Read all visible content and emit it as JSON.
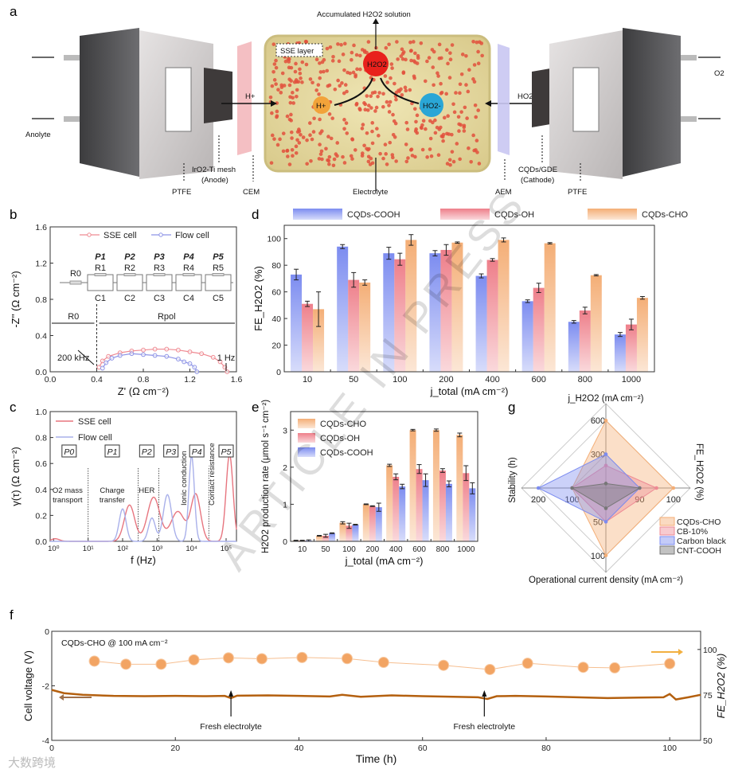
{
  "panel_letters": [
    "a",
    "b",
    "c",
    "d",
    "e",
    "f",
    "g"
  ],
  "watermark": "ARTICLE IN PRESS",
  "logo_text": "大数跨境",
  "schematic": {
    "labels": {
      "accumulated": "Accumulated H2O2 solution",
      "sse_layer": "SSE layer",
      "h2o2": "H2O2",
      "hplus_center": "H+",
      "ho2_center": "HO2-",
      "hplus_arrow": "H+",
      "ho2_arrow": "HO2-",
      "anolyte": "Anolyte",
      "o2": "O2",
      "ptfe_left": "PTFE",
      "iro2_mesh": "IrO2-Ti mesh",
      "anode": "(Anode)",
      "cem": "CEM",
      "electrolyte": "Electrolyte",
      "aem": "AEM",
      "cqds_gde": "CQDs/GDE",
      "cathode": "(Cathode)",
      "ptfe_right": "PTFE"
    },
    "colors": {
      "h2o2": "#e8211c",
      "hplus": "#f2a33a",
      "ho2": "#2aa6d6",
      "cem": "#f3b8bd",
      "aem": "#c9c6f2",
      "gel": "#e8dca0"
    }
  },
  "chart_data": [
    {
      "id": "b",
      "type": "scatter",
      "xlabel": "Z' (Ω cm⁻²)",
      "ylabel": "-Z'' (Ω cm⁻²)",
      "xlim": [
        0,
        1.6
      ],
      "ylim": [
        0,
        1.6
      ],
      "xticks": [
        "0.0",
        "0.4",
        "0.8",
        "1.2",
        "1.6"
      ],
      "xtick_values": [
        0,
        0.4,
        0.8,
        1.2,
        1.6
      ],
      "yticks": [
        "0.0",
        "0.4",
        "0.8",
        "1.2",
        "1.6"
      ],
      "ytick_values": [
        0,
        0.4,
        0.8,
        1.2,
        1.6
      ],
      "series": [
        {
          "name": "SSE cell",
          "color": "#ef8a92",
          "x": [
            0.42,
            0.45,
            0.5,
            0.6,
            0.7,
            0.8,
            0.9,
            1.0,
            1.1,
            1.2,
            1.3,
            1.4,
            1.46,
            1.5,
            1.52
          ],
          "y": [
            0.05,
            0.12,
            0.17,
            0.21,
            0.23,
            0.24,
            0.25,
            0.25,
            0.24,
            0.22,
            0.2,
            0.16,
            0.11,
            0.05,
            0.0
          ]
        },
        {
          "name": "Flow cell",
          "color": "#8d93e6",
          "x": [
            0.45,
            0.48,
            0.53,
            0.6,
            0.7,
            0.8,
            0.9,
            1.0,
            1.1,
            1.15,
            1.2,
            1.24,
            1.26
          ],
          "y": [
            0.04,
            0.1,
            0.15,
            0.18,
            0.2,
            0.19,
            0.18,
            0.17,
            0.14,
            0.11,
            0.09,
            0.05,
            0.0
          ]
        }
      ],
      "circuit": {
        "r0": "R0",
        "elements": [
          {
            "p": "P1",
            "r": "R1",
            "c": "C1"
          },
          {
            "p": "P2",
            "r": "R2",
            "c": "C2"
          },
          {
            "p": "P3",
            "r": "R3",
            "c": "C3"
          },
          {
            "p": "P4",
            "r": "R4",
            "c": "C4"
          },
          {
            "p": "P5",
            "r": "R5",
            "c": "C5"
          }
        ]
      },
      "annotations": {
        "r0": "R0",
        "rpol": "Rpol",
        "high_freq": "200 kHz",
        "low_freq": "1 Hz",
        "r0_boundary": 0.4
      }
    },
    {
      "id": "c",
      "type": "line",
      "xlabel": "f (Hz)",
      "ylabel": "γ(τ) (Ω cm⁻²)",
      "xscale": "log",
      "xlim_log10": [
        -0.1,
        5.3
      ],
      "ylim": [
        0,
        1.0
      ],
      "xticks": [
        "10⁰",
        "10¹",
        "10²",
        "10³",
        "10⁴",
        "10⁵"
      ],
      "xtick_log10": [
        0,
        1,
        2,
        3,
        4,
        5
      ],
      "yticks": [
        "0.0",
        "0.2",
        "0.4",
        "0.6",
        "0.8",
        "1.0"
      ],
      "ytick_values": [
        0,
        0.2,
        0.4,
        0.6,
        0.8,
        1.0
      ],
      "series": [
        {
          "name": "SSE cell",
          "color": "#e7757f",
          "peaks_log10f_height_width": [
            [
              0.05,
              0.02,
              0.12
            ],
            [
              2.2,
              0.28,
              0.15
            ],
            [
              2.9,
              0.34,
              0.18
            ],
            [
              3.6,
              0.23,
              0.2
            ],
            [
              4.12,
              0.36,
              0.14
            ],
            [
              5.1,
              0.67,
              0.1
            ]
          ]
        },
        {
          "name": "Flow cell",
          "color": "#a9b0ea",
          "peaks_log10f_height_width": [
            [
              2.0,
              0.25,
              0.1
            ],
            [
              2.85,
              0.18,
              0.1
            ],
            [
              3.3,
              0.36,
              0.12
            ],
            [
              4.0,
              0.66,
              0.08
            ]
          ]
        }
      ],
      "dividers_log10f": [
        1.0,
        2.45,
        3.05,
        4.5
      ],
      "processes": [
        {
          "p": "P0",
          "at": 0.45,
          "desc": [
            "O2 mass",
            "transport"
          ]
        },
        {
          "p": "P1",
          "at": 1.7,
          "desc": [
            "Charge",
            "transfer"
          ]
        },
        {
          "p": "P2",
          "at": 2.7,
          "desc": [
            "HER"
          ]
        },
        {
          "p": "P3",
          "at": 3.4,
          "desc": []
        },
        {
          "p": "P4",
          "at": 4.15,
          "desc": []
        },
        {
          "p": "P5",
          "at": 5.0,
          "desc": []
        }
      ],
      "vertical_labels": {
        "ionic": "Ionic conduction",
        "contact": "Contact resistance"
      }
    },
    {
      "id": "d",
      "type": "bar",
      "xlabel": "j_total (mA cm⁻²)",
      "ylabel": "FE_H2O2 (%)",
      "categories": [
        "10",
        "50",
        "100",
        "200",
        "400",
        "600",
        "800",
        "1000"
      ],
      "ylim": [
        0,
        110
      ],
      "yticks": [
        "0",
        "20",
        "40",
        "60",
        "80",
        "100"
      ],
      "ytick_values": [
        0,
        20,
        40,
        60,
        80,
        100
      ],
      "legend": "top",
      "series": [
        {
          "name": "CQDs-COOH",
          "color": "#7c8cf0",
          "values": [
            73,
            94,
            89,
            89,
            72,
            53,
            37.5,
            28
          ],
          "errors": [
            4,
            1.5,
            4.5,
            2,
            1.5,
            1,
            1,
            1.5
          ]
        },
        {
          "name": "CQDs-OH",
          "color": "#ee7f8a",
          "values": [
            51,
            69,
            84.5,
            91.5,
            84,
            63,
            46,
            35.5
          ],
          "errors": [
            2,
            5.5,
            4.5,
            4,
            1,
            3.5,
            2.5,
            4
          ]
        },
        {
          "name": "CQDs-CHO",
          "color": "#f4ae76",
          "values": [
            47,
            67,
            99,
            97,
            99,
            96.5,
            72.5,
            55.5
          ],
          "errors": [
            13,
            2,
            4,
            0.5,
            1.5,
            0.5,
            0.5,
            1
          ]
        }
      ]
    },
    {
      "id": "e",
      "type": "bar",
      "xlabel": "j_total (mA cm⁻²)",
      "ylabel": "H2O2 production rate (μmol s⁻¹ cm⁻²)",
      "categories": [
        "10",
        "50",
        "100",
        "200",
        "400",
        "600",
        "800",
        "1000"
      ],
      "ylim": [
        0,
        3.5
      ],
      "yticks": [
        "0",
        "1",
        "2",
        "3"
      ],
      "ytick_values": [
        0,
        1,
        2,
        3
      ],
      "legend": "top-left",
      "series": [
        {
          "name": "CQDs-CHO",
          "color": "#f4ae76",
          "values": [
            0.02,
            0.15,
            0.5,
            1.0,
            2.05,
            3.0,
            3.0,
            2.87
          ],
          "errors": [
            0.01,
            0.01,
            0.03,
            0.01,
            0.03,
            0.02,
            0.03,
            0.05
          ]
        },
        {
          "name": "CQDs-OH",
          "color": "#ee7f8a",
          "values": [
            0.02,
            0.15,
            0.42,
            0.95,
            1.74,
            1.95,
            1.91,
            1.84
          ],
          "errors": [
            0.01,
            0.04,
            0.07,
            0.01,
            0.08,
            0.12,
            0.05,
            0.2
          ]
        },
        {
          "name": "CQDs-COOH",
          "color": "#7c8cf0",
          "values": [
            0.02,
            0.22,
            0.45,
            0.92,
            1.48,
            1.65,
            1.55,
            1.43
          ],
          "errors": [
            0.02,
            0.01,
            0.01,
            0.11,
            0.06,
            0.17,
            0.08,
            0.15
          ]
        }
      ]
    },
    {
      "id": "g",
      "type": "radar",
      "axes": [
        {
          "name": "j_H2O2 (mA cm⁻²)",
          "dir": "top",
          "range": [
            0,
            750
          ],
          "ticks": [
            "300",
            "600"
          ],
          "tick_values": [
            300,
            600
          ]
        },
        {
          "name": "FE_H2O2 (%)",
          "dir": "right",
          "range": [
            80,
            105
          ],
          "ticks": [
            "90",
            "100"
          ],
          "tick_values": [
            90,
            100
          ]
        },
        {
          "name": "Operational current density (mA cm⁻²)",
          "dir": "bottom",
          "range": [
            0,
            125
          ],
          "ticks": [
            "50",
            "100"
          ],
          "tick_values": [
            50,
            100
          ]
        },
        {
          "name": "Stability (h)",
          "dir": "left",
          "range": [
            0,
            250
          ],
          "ticks": [
            "100",
            "200"
          ],
          "tick_values": [
            100,
            200
          ]
        }
      ],
      "legend": "bottom-right",
      "series": [
        {
          "name": "CQDs-CHO",
          "color": "#f4ae76",
          "values": [
            600,
            100,
            100,
            100
          ]
        },
        {
          "name": "CB-10%",
          "color": "#ee8a94",
          "values": [
            200,
            95,
            50,
            100
          ]
        },
        {
          "name": "Carbon black",
          "color": "#7c8cf0",
          "values": [
            300,
            90,
            50,
            200
          ]
        },
        {
          "name": "CNT-COOH",
          "color": "#777777",
          "values": [
            40,
            90,
            30,
            100
          ]
        }
      ]
    },
    {
      "id": "f",
      "type": "line",
      "title": "CQDs-CHO @ 100 mA cm⁻²",
      "xlabel": "Time (h)",
      "ylabel_left": "Cell voltage (V)",
      "ylabel_right": "FE_H2O2 (%)",
      "xlim": [
        0,
        105
      ],
      "ylim_left": [
        -4,
        0
      ],
      "ylim_right": [
        50,
        110
      ],
      "xticks": [
        "0",
        "20",
        "40",
        "60",
        "80",
        "100"
      ],
      "xtick_values": [
        0,
        20,
        40,
        60,
        80,
        100
      ],
      "yticks_left": [
        "0",
        "-2",
        "-4"
      ],
      "ytick_left_values": [
        0,
        -2,
        -4
      ],
      "yticks_right": [
        "50",
        "75",
        "100"
      ],
      "ytick_right_values": [
        50,
        75,
        100
      ],
      "series": [
        {
          "name": "Cell voltage",
          "axis": "left",
          "color": "#b4600f",
          "x": [
            0,
            2,
            5,
            10,
            15,
            20,
            25,
            28,
            29,
            30,
            35,
            40,
            45,
            47,
            50,
            55,
            60,
            65,
            69,
            70.5,
            72,
            75,
            80,
            85,
            90,
            95,
            99,
            100,
            101,
            103,
            105
          ],
          "y": [
            -2.15,
            -2.27,
            -2.33,
            -2.37,
            -2.38,
            -2.37,
            -2.38,
            -2.37,
            -2.45,
            -2.36,
            -2.35,
            -2.37,
            -2.39,
            -2.33,
            -2.4,
            -2.35,
            -2.38,
            -2.4,
            -2.42,
            -2.48,
            -2.38,
            -2.37,
            -2.39,
            -2.42,
            -2.45,
            -2.43,
            -2.42,
            -2.3,
            -2.5,
            -2.42,
            -2.33
          ]
        },
        {
          "name": "FE_H2O2",
          "axis": "right",
          "color": "#f2a463",
          "x": [
            6.9,
            12,
            17.7,
            23,
            28.6,
            34,
            40.5,
            47.8,
            53.7,
            63.4,
            70.9,
            77,
            86,
            91.1,
            100
          ],
          "y": [
            93.6,
            91.9,
            91.9,
            94.3,
            95.4,
            94.9,
            95.6,
            95,
            92.9,
            91.3,
            89,
            92.4,
            90.2,
            89.9,
            92.2
          ]
        }
      ],
      "annotations": [
        {
          "text": "Fresh electrolyte",
          "x": 29
        },
        {
          "text": "Fresh electrolyte",
          "x": 70
        }
      ]
    }
  ]
}
